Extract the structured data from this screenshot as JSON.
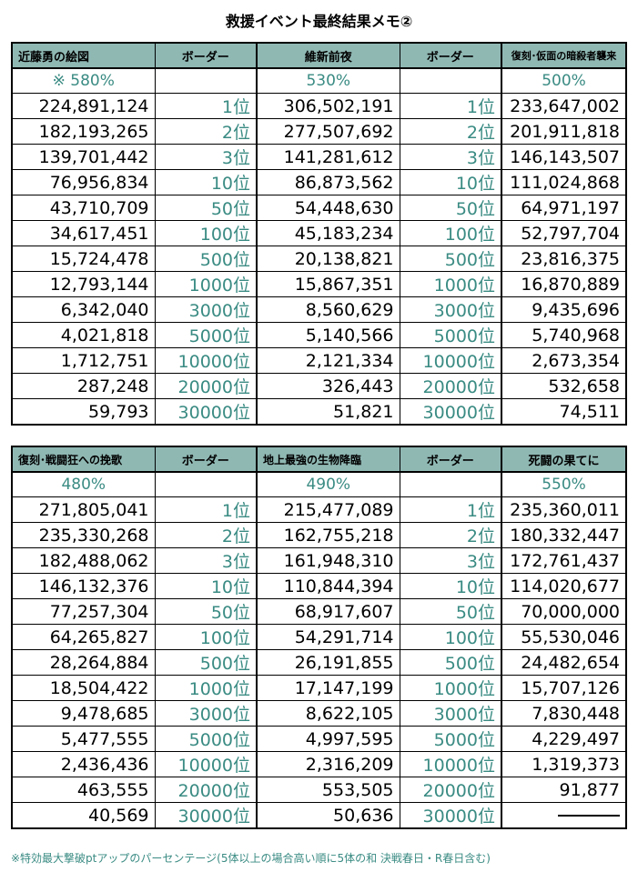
{
  "title": "救援イベント最終結果メモ②",
  "border_label": "ボーダー",
  "ranks": [
    "1位",
    "2位",
    "3位",
    "10位",
    "50位",
    "100位",
    "500位",
    "1000位",
    "3000位",
    "5000位",
    "10000位",
    "20000位",
    "30000位"
  ],
  "top": {
    "events": [
      {
        "name": "近藤勇の絵図",
        "pct": "※ 580%",
        "values": [
          "224,891,124",
          "182,193,265",
          "139,701,442",
          "76,956,834",
          "43,710,709",
          "34,617,451",
          "15,724,478",
          "12,793,144",
          "6,342,040",
          "4,021,818",
          "1,712,751",
          "287,248",
          "59,793"
        ]
      },
      {
        "name": "維新前夜",
        "pct": "530%",
        "values": [
          "306,502,191",
          "277,507,692",
          "141,281,612",
          "86,873,562",
          "54,448,630",
          "45,183,234",
          "20,138,821",
          "15,867,351",
          "8,560,629",
          "5,140,566",
          "2,121,334",
          "326,443",
          "51,821"
        ]
      },
      {
        "name": "復刻･仮面の暗殺者襲来",
        "pct": "500%",
        "values": [
          "233,647,002",
          "201,911,818",
          "146,143,507",
          "111,024,868",
          "64,971,197",
          "52,797,704",
          "23,816,375",
          "16,870,889",
          "9,435,696",
          "5,740,968",
          "2,673,354",
          "532,658",
          "74,511"
        ]
      }
    ]
  },
  "bottom": {
    "events": [
      {
        "name": "復刻･戦闘狂への挽歌",
        "pct": "480%",
        "values": [
          "271,805,041",
          "235,330,268",
          "182,488,062",
          "146,132,376",
          "77,257,304",
          "64,265,827",
          "28,264,884",
          "18,504,422",
          "9,478,685",
          "5,477,555",
          "2,436,436",
          "463,555",
          "40,569"
        ]
      },
      {
        "name": "地上最強の生物降臨",
        "pct": "490%",
        "values": [
          "215,477,089",
          "162,755,218",
          "161,948,310",
          "110,844,394",
          "68,917,607",
          "54,291,714",
          "26,191,855",
          "17,147,199",
          "8,622,105",
          "4,997,595",
          "2,316,209",
          "553,505",
          "50,636"
        ]
      },
      {
        "name": "死闘の果てに",
        "pct": "550%",
        "values": [
          "235,360,011",
          "180,332,447",
          "172,761,437",
          "114,020,677",
          "70,000,000",
          "55,530,046",
          "24,482,654",
          "15,707,126",
          "7,830,448",
          "4,229,497",
          "1,319,373",
          "91,877",
          ""
        ]
      }
    ]
  },
  "footnote": "※特効最大撃破ptアップのパーセンテージ(5体以上の場合高い順に5体の和 決戦春日・R春日含む)",
  "colors": {
    "header_bg": "#8fb8b3",
    "accent_text": "#3a8b83"
  }
}
